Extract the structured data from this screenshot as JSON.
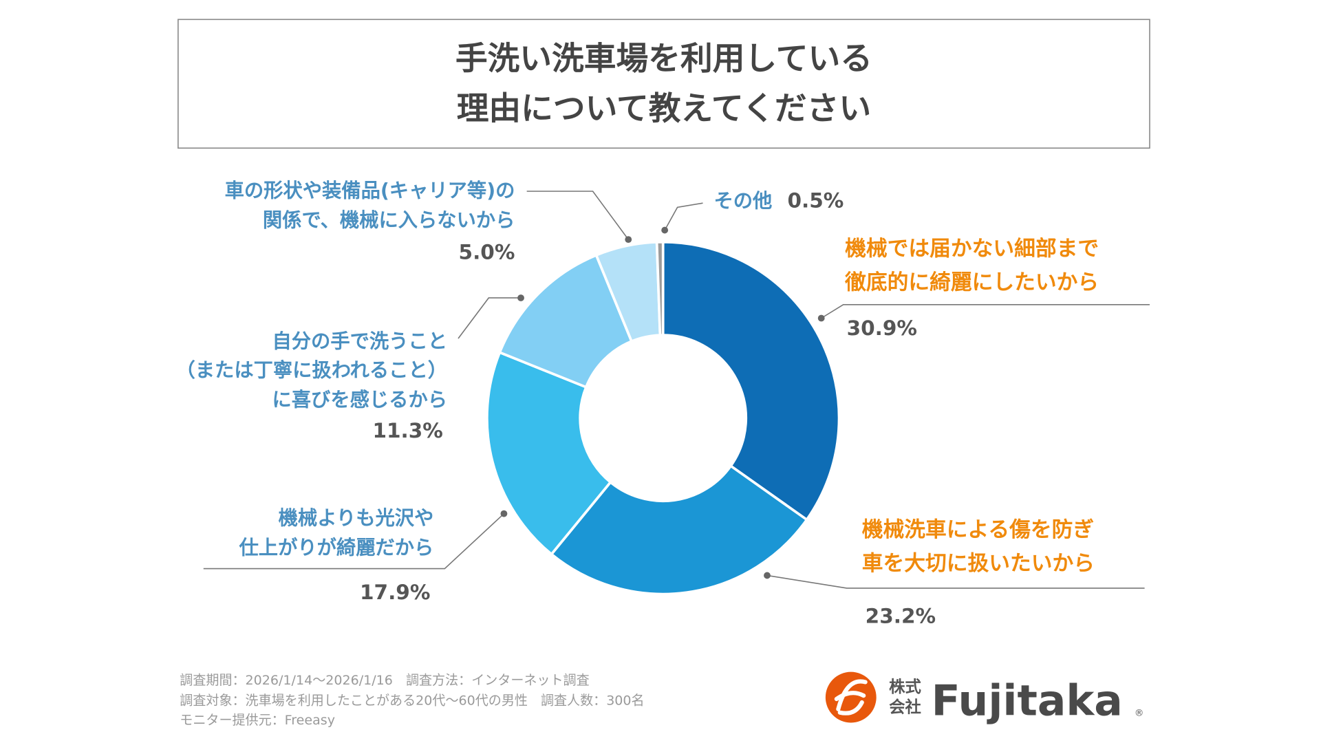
{
  "chart_data": {
    "type": "pie",
    "variant": "donut",
    "title": [
      "手洗い洗車場を利用している",
      "理由について教えてください"
    ],
    "slices": [
      {
        "label": [
          "機械では届かない細部まで",
          "徹底的に綺麗にしたいから"
        ],
        "value": 30.9,
        "pct_text": "30.9%",
        "color": "#0e6db5",
        "label_color": "orange"
      },
      {
        "label": [
          "機械洗車による傷を防ぎ",
          "車を大切に扱いたいから"
        ],
        "value": 23.2,
        "pct_text": "23.2%",
        "color": "#1b96d5",
        "label_color": "orange"
      },
      {
        "label": [
          "機械よりも光沢や",
          "仕上がりが綺麗だから"
        ],
        "value": 17.9,
        "pct_text": "17.9%",
        "color": "#39bdec",
        "label_color": "blue"
      },
      {
        "label": [
          "自分の手で洗うこと",
          "（または丁寧に扱われること）",
          "に喜びを感じるから"
        ],
        "value": 11.3,
        "pct_text": "11.3%",
        "color": "#82cff4",
        "label_color": "blue"
      },
      {
        "label": [
          "車の形状や装備品(キャリア等)の",
          "関係で、機械に入らないから"
        ],
        "value": 5.0,
        "pct_text": "5.0%",
        "color": "#b4e1f8",
        "label_color": "blue"
      },
      {
        "label": [
          "その他"
        ],
        "value": 0.5,
        "pct_text": "0.5%",
        "color": "#9a9a9a",
        "label_color": "blue"
      }
    ]
  },
  "footnote": [
    "調査期間：2026/1/14～2026/1/16　調査方法：インターネット調査",
    "調査対象：洗車場を利用したことがある20代～60代の男性　調査人数：300名",
    "モニター提供元：Freeasy"
  ],
  "logo": {
    "prefix_top": "株式",
    "prefix_bottom": "会社",
    "name": "Fujitaka",
    "brand_color": "#e8580c"
  }
}
